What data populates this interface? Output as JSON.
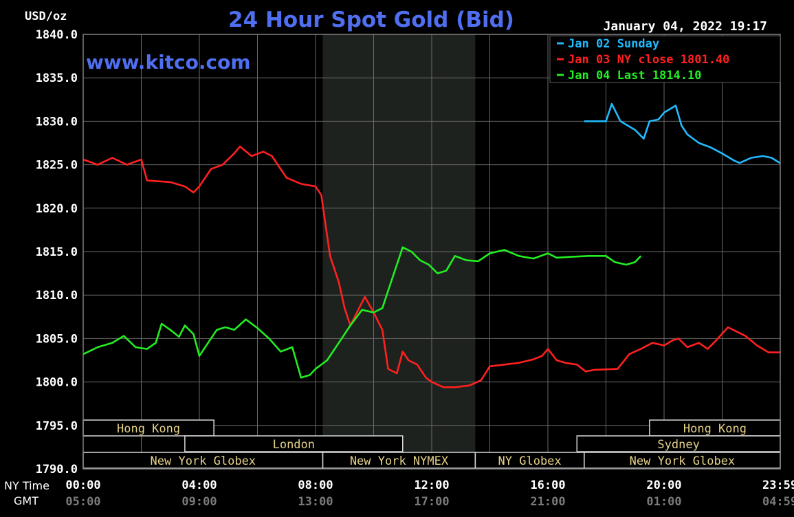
{
  "chart_data": {
    "type": "line",
    "title": "24 Hour Spot Gold (Bid)",
    "unit_label": "USD/oz",
    "watermark": "www.kitco.com",
    "timestamp": "January 04, 2022 19:17",
    "ylim": [
      1790,
      1840
    ],
    "yticks": [
      "1840.0",
      "1835.0",
      "1830.0",
      "1825.0",
      "1820.0",
      "1815.0",
      "1810.0",
      "1805.0",
      "1800.0",
      "1795.0",
      "1790.0"
    ],
    "xlim": [
      0,
      24
    ],
    "x_row_labels": {
      "ny": "NY Time",
      "gmt": "GMT"
    },
    "xticks_ny": [
      "00:00",
      "04:00",
      "08:00",
      "12:00",
      "16:00",
      "20:00",
      "23:59"
    ],
    "xticks_gmt": [
      "05:00",
      "09:00",
      "13:00",
      "17:00",
      "21:00",
      "01:00",
      "04:59"
    ],
    "grid": true,
    "legend_position": "top-right",
    "legend": [
      {
        "label": "Jan 02 Sunday",
        "color": "#22bbff"
      },
      {
        "label": "Jan 03 NY close 1801.40",
        "color": "#ff2020"
      },
      {
        "label": "Jan 04 Last 1814.10",
        "color": "#22ee22"
      }
    ],
    "sessions": [
      {
        "label": "Hong Kong",
        "row": 0,
        "start": 0,
        "end": 4.5
      },
      {
        "label": "Hong Kong",
        "row": 0,
        "start": 19.5,
        "end": 24
      },
      {
        "label": "London",
        "row": 1,
        "start": 3.5,
        "end": 11
      },
      {
        "label": "Sydney",
        "row": 1,
        "start": 17,
        "end": 24
      },
      {
        "label": "New York Globex",
        "row": 2,
        "start": 0,
        "end": 8.25
      },
      {
        "label": "New York NYMEX",
        "row": 2,
        "start": 8.25,
        "end": 13.5
      },
      {
        "label": "NY Globex",
        "row": 2,
        "start": 13.5,
        "end": 17.25
      },
      {
        "label": "New York Globex",
        "row": 2,
        "start": 17.25,
        "end": 24
      }
    ],
    "nymex_shading": [
      8.25,
      13.5
    ],
    "series": [
      {
        "name": "Jan 02 Sunday",
        "color": "#22bbff",
        "points": [
          [
            17.25,
            1830.0
          ],
          [
            18.0,
            1830.0
          ],
          [
            18.2,
            1832.0
          ],
          [
            18.5,
            1830.0
          ],
          [
            19.0,
            1829.0
          ],
          [
            19.3,
            1828.0
          ],
          [
            19.5,
            1830.0
          ],
          [
            19.8,
            1830.2
          ],
          [
            20.0,
            1831.0
          ],
          [
            20.4,
            1831.8
          ],
          [
            20.6,
            1829.5
          ],
          [
            20.8,
            1828.5
          ],
          [
            21.2,
            1827.5
          ],
          [
            21.6,
            1827.0
          ],
          [
            22.0,
            1826.3
          ],
          [
            22.4,
            1825.5
          ],
          [
            22.6,
            1825.2
          ],
          [
            23.0,
            1825.8
          ],
          [
            23.4,
            1826.0
          ],
          [
            23.7,
            1825.8
          ],
          [
            23.99,
            1825.2
          ]
        ]
      },
      {
        "name": "Jan 03 NY close 1801.40",
        "color": "#ff2020",
        "points": [
          [
            0,
            1825.6
          ],
          [
            0.5,
            1825.0
          ],
          [
            1.0,
            1825.8
          ],
          [
            1.5,
            1825.0
          ],
          [
            2.0,
            1825.6
          ],
          [
            2.2,
            1823.2
          ],
          [
            3.0,
            1823.0
          ],
          [
            3.5,
            1822.5
          ],
          [
            3.8,
            1821.8
          ],
          [
            4.0,
            1822.5
          ],
          [
            4.4,
            1824.5
          ],
          [
            4.8,
            1825.0
          ],
          [
            5.2,
            1826.3
          ],
          [
            5.4,
            1827.1
          ],
          [
            5.8,
            1826.0
          ],
          [
            6.2,
            1826.5
          ],
          [
            6.5,
            1826.0
          ],
          [
            7.0,
            1823.5
          ],
          [
            7.5,
            1822.8
          ],
          [
            8.0,
            1822.5
          ],
          [
            8.2,
            1821.5
          ],
          [
            8.5,
            1814.5
          ],
          [
            8.8,
            1811.5
          ],
          [
            9.0,
            1808.5
          ],
          [
            9.2,
            1806.5
          ],
          [
            9.5,
            1808.5
          ],
          [
            9.7,
            1809.8
          ],
          [
            10.0,
            1808.0
          ],
          [
            10.3,
            1806.0
          ],
          [
            10.5,
            1801.5
          ],
          [
            10.8,
            1801.0
          ],
          [
            11.0,
            1803.5
          ],
          [
            11.2,
            1802.5
          ],
          [
            11.5,
            1802.0
          ],
          [
            11.8,
            1800.5
          ],
          [
            12.0,
            1800.0
          ],
          [
            12.4,
            1799.4
          ],
          [
            12.8,
            1799.4
          ],
          [
            13.3,
            1799.6
          ],
          [
            13.7,
            1800.2
          ],
          [
            14.0,
            1801.8
          ],
          [
            14.5,
            1802.0
          ],
          [
            15.0,
            1802.2
          ],
          [
            15.5,
            1802.6
          ],
          [
            15.8,
            1803.0
          ],
          [
            16.0,
            1803.8
          ],
          [
            16.3,
            1802.5
          ],
          [
            16.6,
            1802.2
          ],
          [
            17.0,
            1802.0
          ],
          [
            17.3,
            1801.2
          ],
          [
            17.6,
            1801.4
          ],
          [
            18.4,
            1801.5
          ],
          [
            18.8,
            1803.2
          ],
          [
            19.2,
            1803.8
          ],
          [
            19.6,
            1804.5
          ],
          [
            20.0,
            1804.2
          ],
          [
            20.3,
            1804.8
          ],
          [
            20.5,
            1805.0
          ],
          [
            20.8,
            1804.0
          ],
          [
            21.2,
            1804.5
          ],
          [
            21.5,
            1803.8
          ],
          [
            21.8,
            1804.8
          ],
          [
            22.2,
            1806.3
          ],
          [
            22.5,
            1805.8
          ],
          [
            22.8,
            1805.3
          ],
          [
            23.2,
            1804.2
          ],
          [
            23.6,
            1803.4
          ],
          [
            23.99,
            1803.4
          ]
        ]
      },
      {
        "name": "Jan 04 Last 1814.10",
        "color": "#22ee22",
        "points": [
          [
            0,
            1803.2
          ],
          [
            0.5,
            1804.0
          ],
          [
            1.0,
            1804.5
          ],
          [
            1.4,
            1805.3
          ],
          [
            1.8,
            1804.0
          ],
          [
            2.2,
            1803.8
          ],
          [
            2.5,
            1804.5
          ],
          [
            2.7,
            1806.7
          ],
          [
            3.0,
            1806.0
          ],
          [
            3.3,
            1805.2
          ],
          [
            3.5,
            1806.5
          ],
          [
            3.8,
            1805.5
          ],
          [
            4.0,
            1803.0
          ],
          [
            4.3,
            1804.5
          ],
          [
            4.6,
            1806.0
          ],
          [
            4.9,
            1806.3
          ],
          [
            5.2,
            1806.0
          ],
          [
            5.6,
            1807.2
          ],
          [
            6.0,
            1806.2
          ],
          [
            6.4,
            1805.0
          ],
          [
            6.8,
            1803.5
          ],
          [
            7.2,
            1804.0
          ],
          [
            7.5,
            1800.5
          ],
          [
            7.8,
            1800.8
          ],
          [
            8.0,
            1801.5
          ],
          [
            8.4,
            1802.5
          ],
          [
            8.8,
            1804.5
          ],
          [
            9.2,
            1806.5
          ],
          [
            9.6,
            1808.3
          ],
          [
            10.0,
            1808.0
          ],
          [
            10.3,
            1808.5
          ],
          [
            10.5,
            1810.5
          ],
          [
            10.8,
            1813.5
          ],
          [
            11.0,
            1815.5
          ],
          [
            11.3,
            1815.0
          ],
          [
            11.6,
            1814.0
          ],
          [
            11.9,
            1813.5
          ],
          [
            12.2,
            1812.5
          ],
          [
            12.5,
            1812.8
          ],
          [
            12.8,
            1814.5
          ],
          [
            13.2,
            1814.0
          ],
          [
            13.6,
            1813.9
          ],
          [
            14.0,
            1814.8
          ],
          [
            14.5,
            1815.2
          ],
          [
            15.0,
            1814.5
          ],
          [
            15.5,
            1814.2
          ],
          [
            16.0,
            1814.8
          ],
          [
            16.3,
            1814.3
          ],
          [
            16.8,
            1814.4
          ],
          [
            17.4,
            1814.5
          ],
          [
            18.0,
            1814.5
          ],
          [
            18.3,
            1813.8
          ],
          [
            18.7,
            1813.5
          ],
          [
            19.0,
            1813.8
          ],
          [
            19.2,
            1814.5
          ]
        ]
      }
    ]
  }
}
